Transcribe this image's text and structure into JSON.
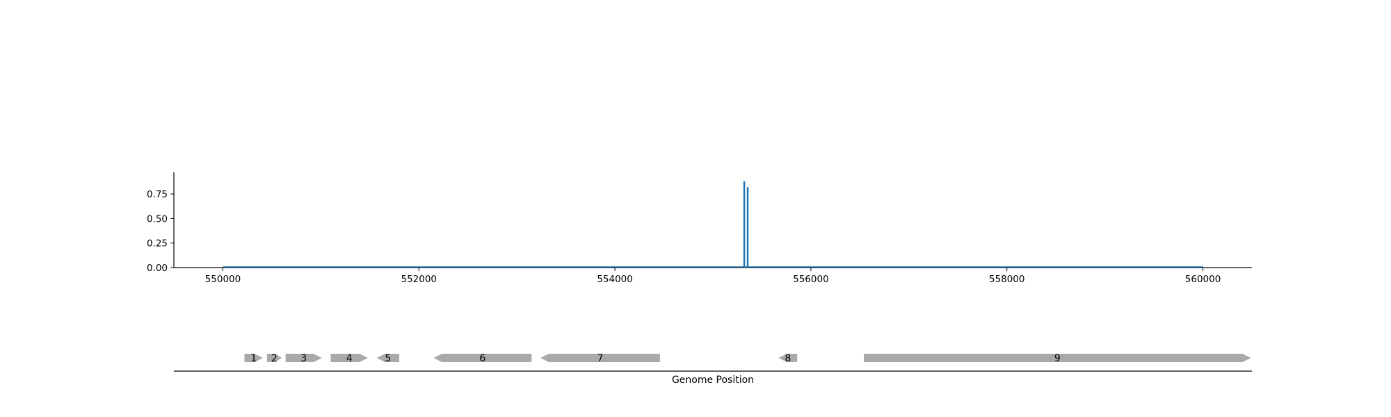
{
  "chart_data": [
    {
      "type": "bar",
      "title": "",
      "xlabel": "",
      "ylabel": "",
      "xlim": [
        549500,
        560500
      ],
      "ylim": [
        0,
        0.97
      ],
      "x_ticks": [
        550000,
        552000,
        554000,
        556000,
        558000,
        560000
      ],
      "y_ticks": [
        "0.00",
        "0.25",
        "0.50",
        "0.75"
      ],
      "baseline_range": [
        550000,
        560000
      ],
      "color": "#1f77b4",
      "points": [
        {
          "x": 555320,
          "y": 0.88
        },
        {
          "x": 555355,
          "y": 0.82
        }
      ],
      "grid": false,
      "legend": "none"
    },
    {
      "type": "gene-track",
      "xlabel": "Genome Position",
      "xlim": [
        549500,
        560500
      ],
      "color": "#a9a9a9",
      "genes": [
        {
          "label": "1",
          "start": 550220,
          "end": 550410,
          "strand": "+"
        },
        {
          "label": "2",
          "start": 550450,
          "end": 550600,
          "strand": "+"
        },
        {
          "label": "3",
          "start": 550640,
          "end": 551010,
          "strand": "+"
        },
        {
          "label": "4",
          "start": 551100,
          "end": 551480,
          "strand": "+"
        },
        {
          "label": "5",
          "start": 551570,
          "end": 551800,
          "strand": "-"
        },
        {
          "label": "6",
          "start": 552150,
          "end": 553150,
          "strand": "-"
        },
        {
          "label": "7",
          "start": 553240,
          "end": 554460,
          "strand": "-"
        },
        {
          "label": "8",
          "start": 555670,
          "end": 555860,
          "strand": "-"
        },
        {
          "label": "9",
          "start": 556540,
          "end": 560490,
          "strand": "+"
        }
      ]
    }
  ]
}
